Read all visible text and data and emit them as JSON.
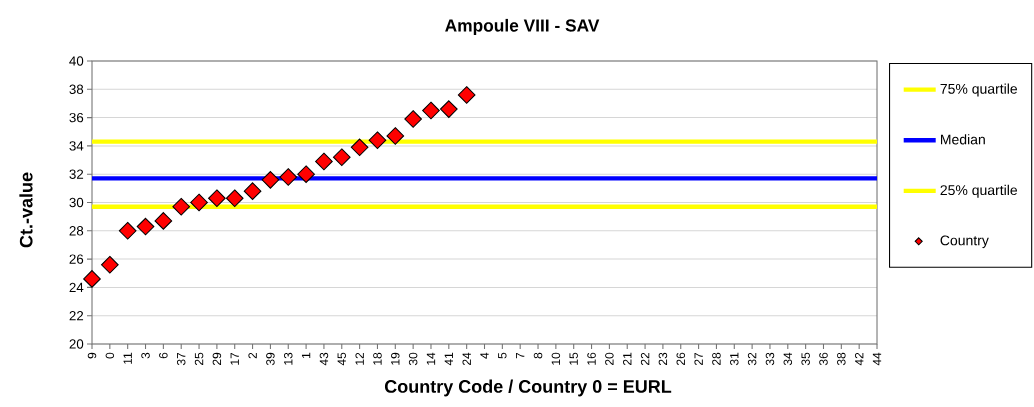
{
  "chart_data": {
    "type": "scatter",
    "title": "Ampoule VIII - SAV",
    "xlabel": "Country Code / Country 0 = EURL",
    "ylabel": "Ct.-value",
    "categories": [
      "9",
      "0",
      "11",
      "3",
      "6",
      "37",
      "25",
      "29",
      "17",
      "2",
      "39",
      "13",
      "1",
      "43",
      "45",
      "12",
      "18",
      "19",
      "30",
      "14",
      "41",
      "24",
      "4",
      "5",
      "7",
      "8",
      "10",
      "15",
      "16",
      "20",
      "21",
      "22",
      "23",
      "26",
      "27",
      "28",
      "31",
      "32",
      "33",
      "34",
      "35",
      "36",
      "38",
      "42",
      "44"
    ],
    "series": [
      {
        "name": "Country",
        "color": "#ff0000",
        "values": [
          24.6,
          25.6,
          28.0,
          28.3,
          28.7,
          29.7,
          30.0,
          30.3,
          30.3,
          30.8,
          31.6,
          31.8,
          32.0,
          32.9,
          33.2,
          33.9,
          34.4,
          34.7,
          35.9,
          36.5,
          36.6,
          37.6,
          null,
          null,
          null,
          null,
          null,
          null,
          null,
          null,
          null,
          null,
          null,
          null,
          null,
          null,
          null,
          null,
          null,
          null,
          null,
          null,
          null,
          null,
          null
        ]
      }
    ],
    "ylim": [
      20,
      40
    ],
    "yticks": [
      20,
      22,
      24,
      26,
      28,
      30,
      32,
      34,
      36,
      38,
      40
    ],
    "grid": "y",
    "legend": "right",
    "marker": "diamond",
    "ref_lines": [
      {
        "axis": "y",
        "value": 34.3,
        "label": "75% quartile",
        "color": "#ffff00"
      },
      {
        "axis": "y",
        "value": 31.7,
        "label": "Median",
        "color": "#0000ff"
      },
      {
        "axis": "y",
        "value": 29.7,
        "label": "25% quartile",
        "color": "#ffff00"
      }
    ]
  }
}
